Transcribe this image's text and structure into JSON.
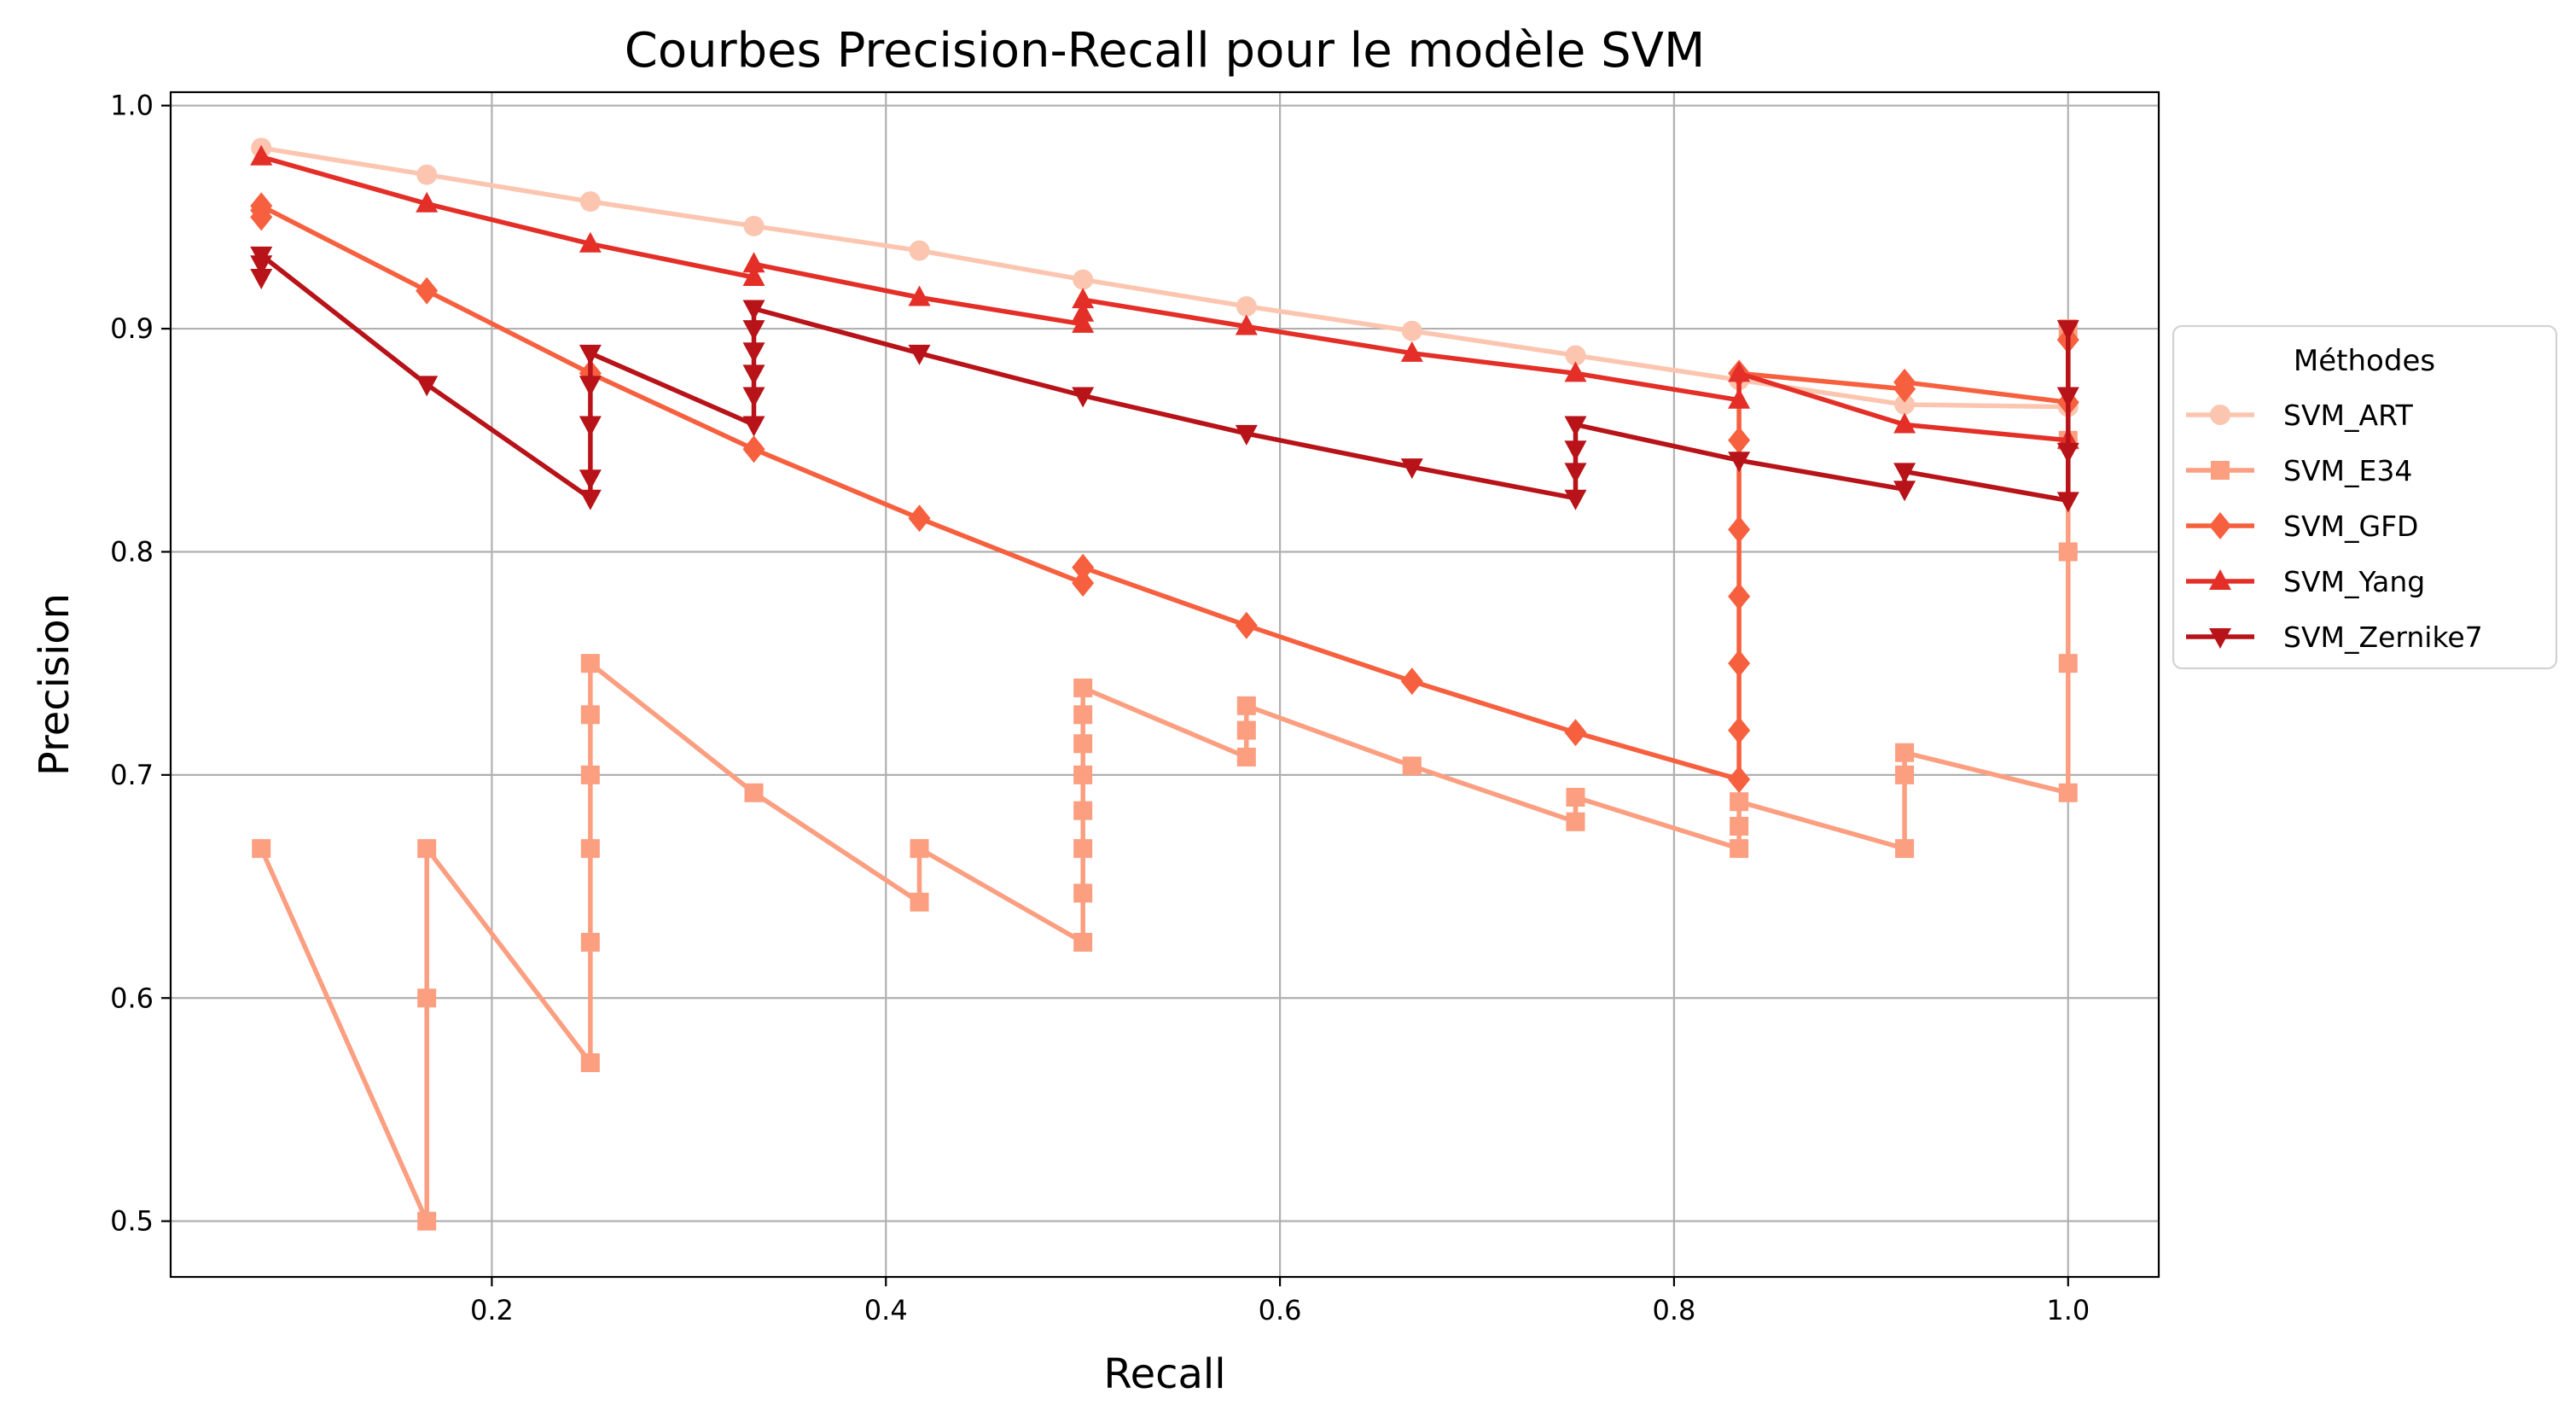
{
  "chart_data": {
    "type": "line",
    "title": "Courbes Precision-Recall pour le modèle SVM",
    "xlabel": "Recall",
    "ylabel": "Precision",
    "xlim": [
      0.037,
      1.046
    ],
    "ylim": [
      0.475,
      1.006
    ],
    "xticks": [
      "0.2",
      "0.4",
      "0.6",
      "0.8",
      "1.0"
    ],
    "xtick_values": [
      0.2,
      0.4,
      0.6,
      0.8,
      1.0
    ],
    "yticks": [
      "0.5",
      "0.6",
      "0.7",
      "0.8",
      "0.9",
      "1.0"
    ],
    "ytick_values": [
      0.5,
      0.6,
      0.7,
      0.8,
      0.9,
      1.0
    ],
    "grid": true,
    "legend": {
      "title": "Méthodes",
      "placement": "outside-right"
    },
    "series": [
      {
        "name": "SVM_ART",
        "color": "#fcc5b0",
        "marker": "circle",
        "x": [
          0.083,
          0.167,
          0.25,
          0.333,
          0.417,
          0.5,
          0.583,
          0.667,
          0.75,
          0.833,
          0.917,
          1.0
        ],
        "y": [
          0.981,
          0.969,
          0.957,
          0.946,
          0.935,
          0.922,
          0.91,
          0.899,
          0.888,
          0.877,
          0.866,
          0.865
        ]
      },
      {
        "name": "SVM_E34",
        "color": "#fc9e80",
        "marker": "square",
        "x": [
          0.083,
          0.167,
          0.167,
          0.167,
          0.25,
          0.25,
          0.25,
          0.25,
          0.25,
          0.25,
          0.333,
          0.417,
          0.417,
          0.5,
          0.5,
          0.5,
          0.5,
          0.5,
          0.5,
          0.5,
          0.5,
          0.583,
          0.583,
          0.583,
          0.667,
          0.75,
          0.75,
          0.833,
          0.833,
          0.833,
          0.917,
          0.917,
          0.917,
          1.0,
          1.0,
          1.0,
          1.0,
          1.0
        ],
        "y": [
          0.667,
          0.5,
          0.6,
          0.667,
          0.571,
          0.625,
          0.667,
          0.7,
          0.727,
          0.75,
          0.692,
          0.643,
          0.667,
          0.625,
          0.647,
          0.667,
          0.684,
          0.7,
          0.714,
          0.727,
          0.739,
          0.708,
          0.72,
          0.731,
          0.704,
          0.679,
          0.69,
          0.667,
          0.677,
          0.688,
          0.667,
          0.7,
          0.71,
          0.692,
          0.75,
          0.8,
          0.85,
          0.9
        ]
      },
      {
        "name": "SVM_GFD",
        "color": "#f6603f",
        "marker": "diamond",
        "x": [
          0.083,
          0.083,
          0.083,
          0.167,
          0.25,
          0.333,
          0.417,
          0.5,
          0.5,
          0.583,
          0.667,
          0.75,
          0.833,
          0.833,
          0.833,
          0.833,
          0.833,
          0.833,
          0.833,
          0.917,
          0.917,
          1.0,
          1.0
        ],
        "y": [
          0.95,
          0.953,
          0.955,
          0.917,
          0.88,
          0.846,
          0.815,
          0.786,
          0.793,
          0.767,
          0.742,
          0.719,
          0.698,
          0.72,
          0.75,
          0.78,
          0.81,
          0.85,
          0.88,
          0.873,
          0.876,
          0.867,
          0.895
        ]
      },
      {
        "name": "SVM_Yang",
        "color": "#e32f27",
        "marker": "triangle-up",
        "x": [
          0.083,
          0.167,
          0.25,
          0.333,
          0.333,
          0.417,
          0.5,
          0.5,
          0.5,
          0.583,
          0.667,
          0.75,
          0.833,
          0.833,
          0.917,
          1.0
        ],
        "y": [
          0.977,
          0.956,
          0.938,
          0.923,
          0.929,
          0.914,
          0.902,
          0.907,
          0.913,
          0.901,
          0.889,
          0.88,
          0.868,
          0.88,
          0.857,
          0.85
        ]
      },
      {
        "name": "SVM_Zernike7",
        "color": "#b71318",
        "marker": "triangle-down",
        "x": [
          0.083,
          0.083,
          0.083,
          0.167,
          0.25,
          0.25,
          0.25,
          0.25,
          0.25,
          0.333,
          0.333,
          0.333,
          0.333,
          0.333,
          0.333,
          0.417,
          0.5,
          0.583,
          0.667,
          0.75,
          0.75,
          0.75,
          0.75,
          0.833,
          0.917,
          0.917,
          1.0,
          1.0,
          1.0,
          1.0
        ],
        "y": [
          0.923,
          0.929,
          0.933,
          0.875,
          0.824,
          0.833,
          0.857,
          0.875,
          0.889,
          0.857,
          0.87,
          0.88,
          0.89,
          0.9,
          0.909,
          0.889,
          0.87,
          0.853,
          0.838,
          0.824,
          0.836,
          0.846,
          0.857,
          0.841,
          0.828,
          0.836,
          0.823,
          0.845,
          0.87,
          0.9
        ]
      }
    ]
  }
}
